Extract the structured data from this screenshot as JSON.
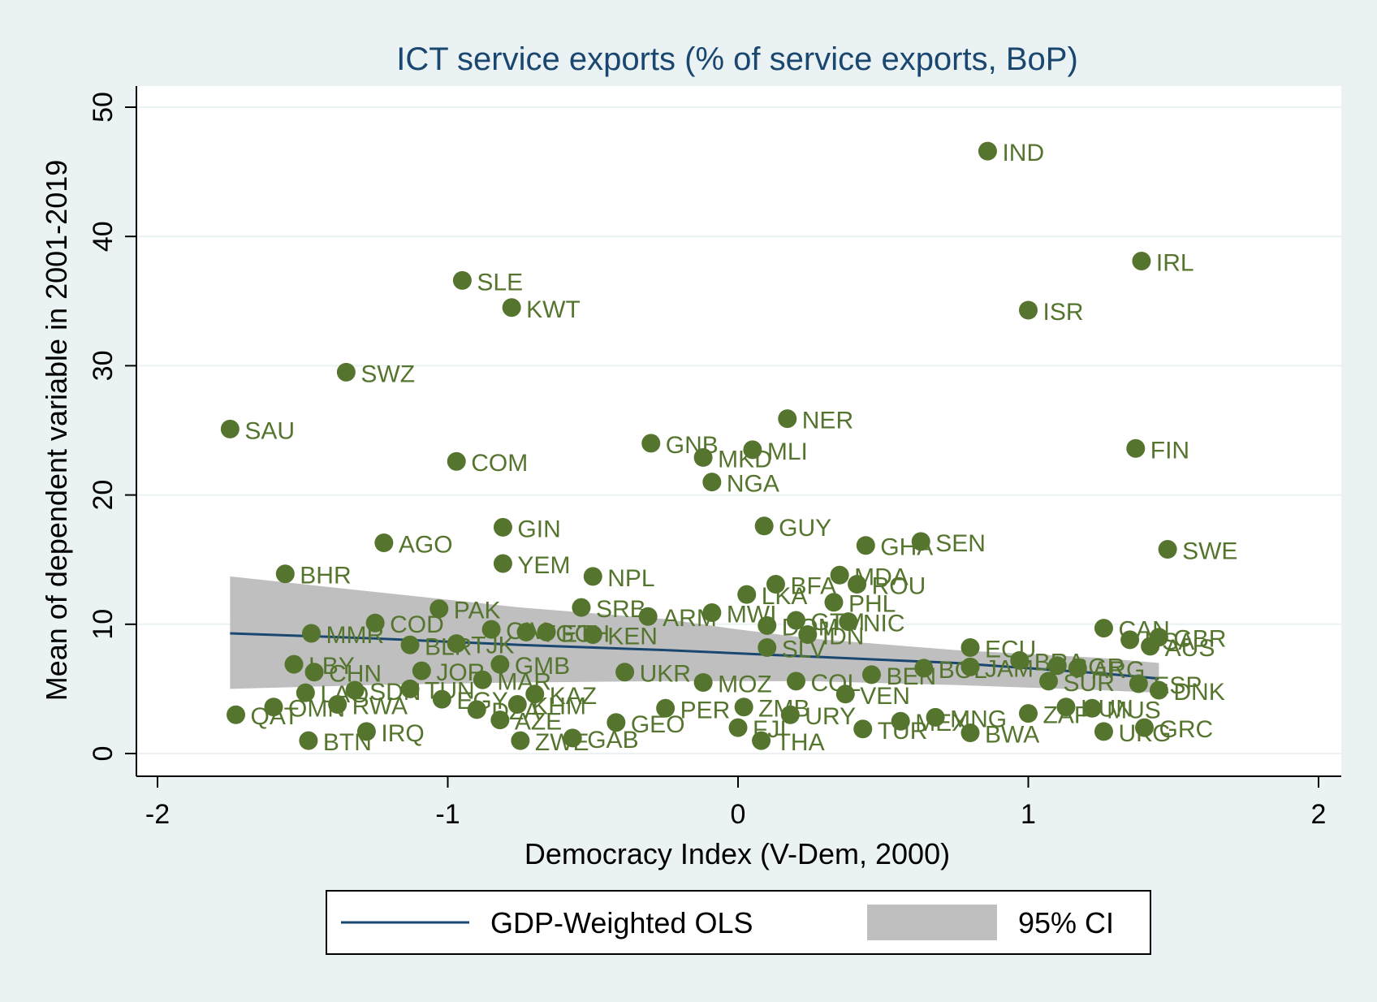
{
  "chart_data": {
    "type": "scatter",
    "title": "ICT service exports (% of service exports, BoP)",
    "xlabel": "Democracy Index (V-Dem, 2000)",
    "ylabel": "Mean of dependent variable in 2001-2019",
    "xlim": [
      -2,
      2
    ],
    "ylim": [
      0,
      50
    ],
    "xticks": [
      -2,
      -1,
      0,
      1,
      2
    ],
    "yticks": [
      0,
      10,
      20,
      30,
      40,
      50
    ],
    "grid": "horizontal",
    "colors": {
      "points": "#55752f",
      "fit_line": "#1a476f",
      "ci_band": "#bfbfbf",
      "background": "#eaf2f3",
      "plot_area": "#ffffff"
    },
    "legend": {
      "placement": "bottom",
      "entries": [
        "GDP-Weighted OLS",
        "95% CI"
      ]
    },
    "fit": {
      "name": "GDP-Weighted OLS",
      "x": [
        -1.75,
        -1.25,
        -0.75,
        -0.25,
        0.25,
        0.75,
        1.25,
        1.45
      ],
      "y": [
        9.3,
        8.9,
        8.4,
        8.0,
        7.5,
        7.0,
        6.2,
        5.8
      ]
    },
    "ci": {
      "name": "95% CI",
      "x": [
        -1.75,
        -1.25,
        -0.75,
        -0.25,
        0,
        0.25,
        0.75,
        1.25,
        1.45
      ],
      "lower": [
        5.0,
        5.3,
        5.5,
        5.6,
        5.6,
        5.6,
        5.3,
        4.9,
        4.7
      ],
      "upper": [
        13.7,
        12.5,
        11.3,
        10.4,
        9.6,
        8.9,
        8.0,
        7.4,
        7.0
      ]
    },
    "points": [
      {
        "label": "IND",
        "x": 0.86,
        "y": 46.6
      },
      {
        "label": "IRL",
        "x": 1.39,
        "y": 38.1
      },
      {
        "label": "SLE",
        "x": -0.95,
        "y": 36.6
      },
      {
        "label": "KWT",
        "x": -0.78,
        "y": 34.5
      },
      {
        "label": "ISR",
        "x": 1.0,
        "y": 34.3
      },
      {
        "label": "SWZ",
        "x": -1.35,
        "y": 29.5
      },
      {
        "label": "NER",
        "x": 0.17,
        "y": 25.9
      },
      {
        "label": "SAU",
        "x": -1.75,
        "y": 25.1
      },
      {
        "label": "GNB",
        "x": -0.3,
        "y": 24.0
      },
      {
        "label": "MLI",
        "x": 0.05,
        "y": 23.5
      },
      {
        "label": "FIN",
        "x": 1.37,
        "y": 23.6
      },
      {
        "label": "MKD",
        "x": -0.12,
        "y": 22.9
      },
      {
        "label": "COM",
        "x": -0.97,
        "y": 22.6
      },
      {
        "label": "NGA",
        "x": -0.09,
        "y": 21.0
      },
      {
        "label": "GIN",
        "x": -0.81,
        "y": 17.5
      },
      {
        "label": "GUY",
        "x": 0.09,
        "y": 17.6
      },
      {
        "label": "AGO",
        "x": -1.22,
        "y": 16.3
      },
      {
        "label": "GHA",
        "x": 0.44,
        "y": 16.1
      },
      {
        "label": "SEN",
        "x": 0.63,
        "y": 16.4
      },
      {
        "label": "SWE",
        "x": 1.48,
        "y": 15.8
      },
      {
        "label": "YEM",
        "x": -0.81,
        "y": 14.7
      },
      {
        "label": "BHR",
        "x": -1.56,
        "y": 13.9
      },
      {
        "label": "NPL",
        "x": -0.5,
        "y": 13.7
      },
      {
        "label": "MDA",
        "x": 0.35,
        "y": 13.8
      },
      {
        "label": "BFA",
        "x": 0.13,
        "y": 13.1
      },
      {
        "label": "ROU",
        "x": 0.41,
        "y": 13.1
      },
      {
        "label": "LKA",
        "x": 0.03,
        "y": 12.3
      },
      {
        "label": "PHL",
        "x": 0.33,
        "y": 11.7
      },
      {
        "label": "PAK",
        "x": -1.03,
        "y": 11.2
      },
      {
        "label": "SRB",
        "x": -0.54,
        "y": 11.3
      },
      {
        "label": "MWI",
        "x": -0.09,
        "y": 10.9
      },
      {
        "label": "ARM",
        "x": -0.31,
        "y": 10.6
      },
      {
        "label": "COD",
        "x": -1.25,
        "y": 10.1
      },
      {
        "label": "DOM",
        "x": 0.1,
        "y": 9.9
      },
      {
        "label": "GTM",
        "x": 0.2,
        "y": 10.3
      },
      {
        "label": "NIC",
        "x": 0.38,
        "y": 10.2
      },
      {
        "label": "MMR",
        "x": -1.47,
        "y": 9.3
      },
      {
        "label": "CIV",
        "x": -0.85,
        "y": 9.6
      },
      {
        "label": "TGO",
        "x": -0.73,
        "y": 9.4
      },
      {
        "label": "ETH",
        "x": -0.66,
        "y": 9.4
      },
      {
        "label": "KEN",
        "x": -0.5,
        "y": 9.2
      },
      {
        "label": "IDN",
        "x": 0.24,
        "y": 9.2
      },
      {
        "label": "BLR",
        "x": -1.13,
        "y": 8.4
      },
      {
        "label": "TJK",
        "x": -0.97,
        "y": 8.5
      },
      {
        "label": "SLV",
        "x": 0.1,
        "y": 8.2
      },
      {
        "label": "ECU",
        "x": 0.8,
        "y": 8.2
      },
      {
        "label": "CAN",
        "x": 1.26,
        "y": 9.7
      },
      {
        "label": "USA",
        "x": 1.35,
        "y": 8.8
      },
      {
        "label": "GBR",
        "x": 1.45,
        "y": 9.0
      },
      {
        "label": "AUS",
        "x": 1.42,
        "y": 8.3
      },
      {
        "label": "LBY",
        "x": -1.53,
        "y": 6.9
      },
      {
        "label": "GMB",
        "x": -0.82,
        "y": 6.9
      },
      {
        "label": "CHN",
        "x": -1.46,
        "y": 6.3
      },
      {
        "label": "JOR",
        "x": -1.09,
        "y": 6.4
      },
      {
        "label": "UKR",
        "x": -0.39,
        "y": 6.3
      },
      {
        "label": "BEN",
        "x": 0.46,
        "y": 6.1
      },
      {
        "label": "BOL",
        "x": 0.64,
        "y": 6.6
      },
      {
        "label": "JAM",
        "x": 0.8,
        "y": 6.7
      },
      {
        "label": "BRA",
        "x": 0.97,
        "y": 7.2
      },
      {
        "label": "BGR",
        "x": 1.1,
        "y": 6.8
      },
      {
        "label": "SUR",
        "x": 1.07,
        "y": 5.6
      },
      {
        "label": "MOZ",
        "x": -0.12,
        "y": 5.5
      },
      {
        "label": "COL",
        "x": 0.2,
        "y": 5.6
      },
      {
        "label": "SDN",
        "x": -1.32,
        "y": 4.9
      },
      {
        "label": "LAO",
        "x": -1.49,
        "y": 4.7
      },
      {
        "label": "TUN",
        "x": -1.13,
        "y": 5.0
      },
      {
        "label": "MAR",
        "x": -0.88,
        "y": 5.7
      },
      {
        "label": "VEN",
        "x": 0.37,
        "y": 4.6
      },
      {
        "label": "ARG",
        "x": 1.17,
        "y": 6.6
      },
      {
        "label": "ESP",
        "x": 1.38,
        "y": 5.4
      },
      {
        "label": "DNK",
        "x": 1.45,
        "y": 4.9
      },
      {
        "label": "KAZ",
        "x": -0.7,
        "y": 4.6
      },
      {
        "label": "QAT",
        "x": -1.73,
        "y": 3.0
      },
      {
        "label": "OMN",
        "x": -1.6,
        "y": 3.6
      },
      {
        "label": "RWA",
        "x": -1.38,
        "y": 3.8
      },
      {
        "label": "EGY",
        "x": -1.02,
        "y": 4.2
      },
      {
        "label": "DZA",
        "x": -0.9,
        "y": 3.4
      },
      {
        "label": "KHM",
        "x": -0.76,
        "y": 3.8
      },
      {
        "label": "PER",
        "x": -0.25,
        "y": 3.5
      },
      {
        "label": "MUS",
        "x": 1.22,
        "y": 3.5
      },
      {
        "label": "HUN",
        "x": 1.13,
        "y": 3.6
      },
      {
        "label": "IRQ",
        "x": -1.28,
        "y": 1.7
      },
      {
        "label": "BTN",
        "x": -1.48,
        "y": 1.0
      },
      {
        "label": "AZE",
        "x": -0.82,
        "y": 2.6
      },
      {
        "label": "GEO",
        "x": -0.42,
        "y": 2.4
      },
      {
        "label": "ZWE",
        "x": -0.75,
        "y": 1.0
      },
      {
        "label": "GAB",
        "x": -0.57,
        "y": 1.2
      },
      {
        "label": "ZMB",
        "x": 0.02,
        "y": 3.6
      },
      {
        "label": "URY",
        "x": 0.18,
        "y": 3.0
      },
      {
        "label": "THA",
        "x": 0.08,
        "y": 1.0
      },
      {
        "label": "FJI",
        "x": 0.0,
        "y": 2.0
      },
      {
        "label": "TUR",
        "x": 0.43,
        "y": 1.9
      },
      {
        "label": "MEX",
        "x": 0.56,
        "y": 2.5
      },
      {
        "label": "MNG",
        "x": 0.68,
        "y": 2.8
      },
      {
        "label": "BWA",
        "x": 0.8,
        "y": 1.6
      },
      {
        "label": "ZAF",
        "x": 1.0,
        "y": 3.1
      },
      {
        "label": "UKG",
        "x": 1.26,
        "y": 1.7
      },
      {
        "label": "GRC",
        "x": 1.4,
        "y": 2.0
      }
    ]
  }
}
